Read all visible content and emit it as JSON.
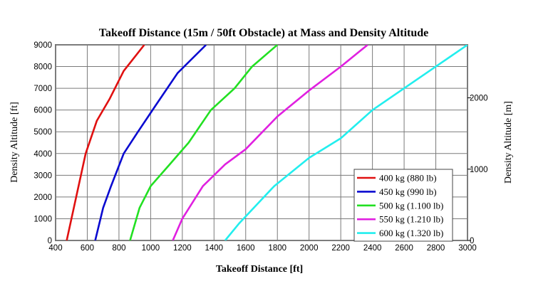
{
  "chart_data": {
    "type": "line",
    "title": "Takeoff Distance (15m / 50ft Obstacle) at Mass and Density Altitude",
    "xlabel": "Takeoff Distance [ft]",
    "ylabel": "Density Altitude [ft]",
    "y2label": "Density Altitude [m]",
    "xlim": [
      400,
      3000
    ],
    "ylim": [
      0,
      9000
    ],
    "x_ticks": [
      "400",
      "600",
      "800",
      "1000",
      "1200",
      "1400",
      "1600",
      "1800",
      "2000",
      "2200",
      "2400",
      "2600",
      "2800",
      "3000"
    ],
    "y_ticks": [
      "0",
      "1000",
      "2000",
      "3000",
      "4000",
      "5000",
      "6000",
      "7000",
      "8000",
      "9000"
    ],
    "y2_ticks": [
      {
        "value": 0,
        "label": "0"
      },
      {
        "value": 1000,
        "label": "1000"
      },
      {
        "value": 2000,
        "label": "2000"
      }
    ],
    "grid": true,
    "legend_position": "bottom-right",
    "series": [
      {
        "name": "400 kg (880 lb)",
        "color": "#e01010",
        "points": [
          [
            470,
            0
          ],
          [
            530,
            2000
          ],
          [
            590,
            4000
          ],
          [
            660,
            5500
          ],
          [
            740,
            6500
          ],
          [
            830,
            7800
          ],
          [
            960,
            9000
          ]
        ]
      },
      {
        "name": "450 kg (990 lb)",
        "color": "#0a0ad0",
        "points": [
          [
            650,
            0
          ],
          [
            700,
            1500
          ],
          [
            750,
            2500
          ],
          [
            830,
            4000
          ],
          [
            920,
            5000
          ],
          [
            1030,
            6200
          ],
          [
            1170,
            7700
          ],
          [
            1350,
            9000
          ]
        ]
      },
      {
        "name": "500 kg (1.100 lb)",
        "color": "#22e022",
        "points": [
          [
            870,
            0
          ],
          [
            930,
            1500
          ],
          [
            1000,
            2500
          ],
          [
            1120,
            3500
          ],
          [
            1240,
            4500
          ],
          [
            1380,
            6000
          ],
          [
            1530,
            7000
          ],
          [
            1640,
            8000
          ],
          [
            1800,
            9000
          ]
        ]
      },
      {
        "name": "550 kg (1.210 lb)",
        "color": "#e020e0",
        "points": [
          [
            1140,
            0
          ],
          [
            1200,
            1000
          ],
          [
            1330,
            2500
          ],
          [
            1470,
            3500
          ],
          [
            1600,
            4200
          ],
          [
            1800,
            5700
          ],
          [
            2000,
            6900
          ],
          [
            2200,
            8000
          ],
          [
            2370,
            9000
          ]
        ]
      },
      {
        "name": "600 kg (1.320 lb)",
        "color": "#22eeee",
        "points": [
          [
            1470,
            0
          ],
          [
            1560,
            800
          ],
          [
            1780,
            2500
          ],
          [
            2000,
            3800
          ],
          [
            2200,
            4700
          ],
          [
            2400,
            6000
          ],
          [
            2600,
            7000
          ],
          [
            2800,
            8000
          ],
          [
            3000,
            9000
          ]
        ]
      }
    ]
  }
}
